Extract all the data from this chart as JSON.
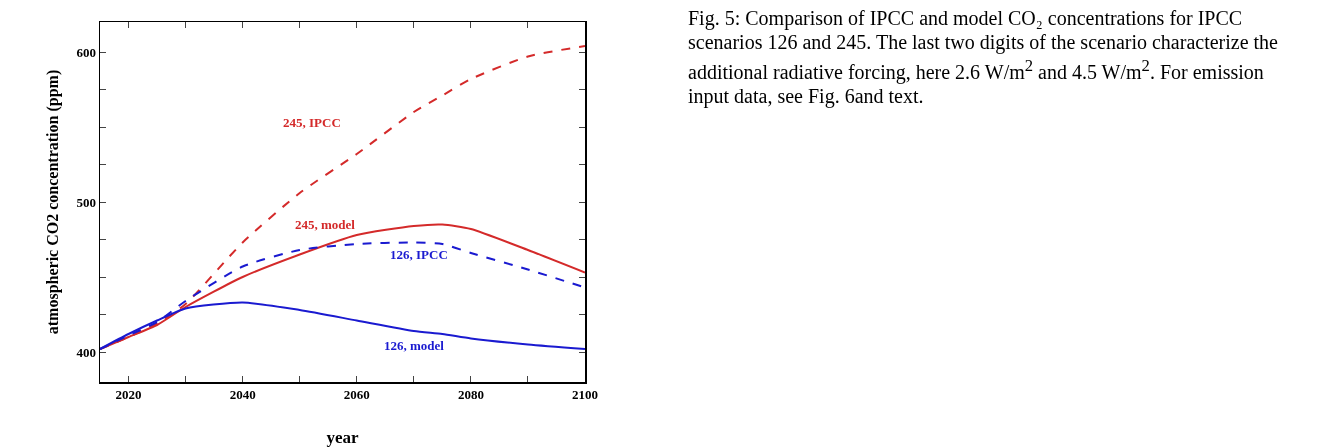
{
  "chart_data": {
    "type": "line",
    "xlabel": "year",
    "ylabel": "atmospheric CO2 concentration (ppm)",
    "xlim": [
      2015,
      2100
    ],
    "xticks": [
      2020,
      {
        "value": 2030,
        "label": null
      },
      2040,
      {
        "value": 2050,
        "label": null
      },
      2060,
      {
        "value": 2070,
        "label": null
      },
      2080,
      {
        "value": 2090,
        "label": null
      },
      2100
    ],
    "ylim": [
      380,
      620
    ],
    "yticks": [
      400,
      {
        "value": 425,
        "label": null
      },
      {
        "value": 450,
        "label": null
      },
      {
        "value": 475,
        "label": null
      },
      500,
      {
        "value": 525,
        "label": null
      },
      {
        "value": 550,
        "label": null
      },
      {
        "value": 575,
        "label": null
      },
      600
    ],
    "x": [
      2015,
      2020,
      2025,
      2030,
      2040,
      2050,
      2060,
      2070,
      2075,
      2080,
      2090,
      2100
    ],
    "series": [
      {
        "name": "245, IPCC",
        "color": "#d42a2a",
        "line_style": "dashed",
        "values": [
          402,
          410,
          419,
          432,
          473,
          506,
          532,
          560,
          571,
          582,
          597,
          604
        ]
      },
      {
        "name": "245, model",
        "color": "#d42a2a",
        "line_style": "solid",
        "values": [
          402,
          410,
          418,
          430,
          450,
          465,
          478,
          484,
          485,
          482,
          468,
          453
        ]
      },
      {
        "name": "126, IPCC",
        "color": "#1a1ad0",
        "line_style": "dashed",
        "values": [
          402,
          411,
          420,
          434,
          457,
          468,
          472,
          473,
          472,
          466,
          455,
          443
        ]
      },
      {
        "name": "126, model",
        "color": "#1a1ad0",
        "line_style": "solid",
        "values": [
          402,
          412,
          421,
          429,
          433,
          428,
          421,
          414,
          412,
          409,
          405,
          402
        ]
      }
    ],
    "grid": false,
    "legend": false,
    "marker": "none",
    "annotations": [
      "Fig. 5:  Comparison of IPCC and model CO₂ concentrations for IPCC scenarios 126 and 245. The last two digits of the scenario characterize the additional radiative forcing, here 2.6 W/m$^{2}$ and 4.5 W/m$^{2}$. For emission input data, see Fig. 6and text."
    ]
  }
}
